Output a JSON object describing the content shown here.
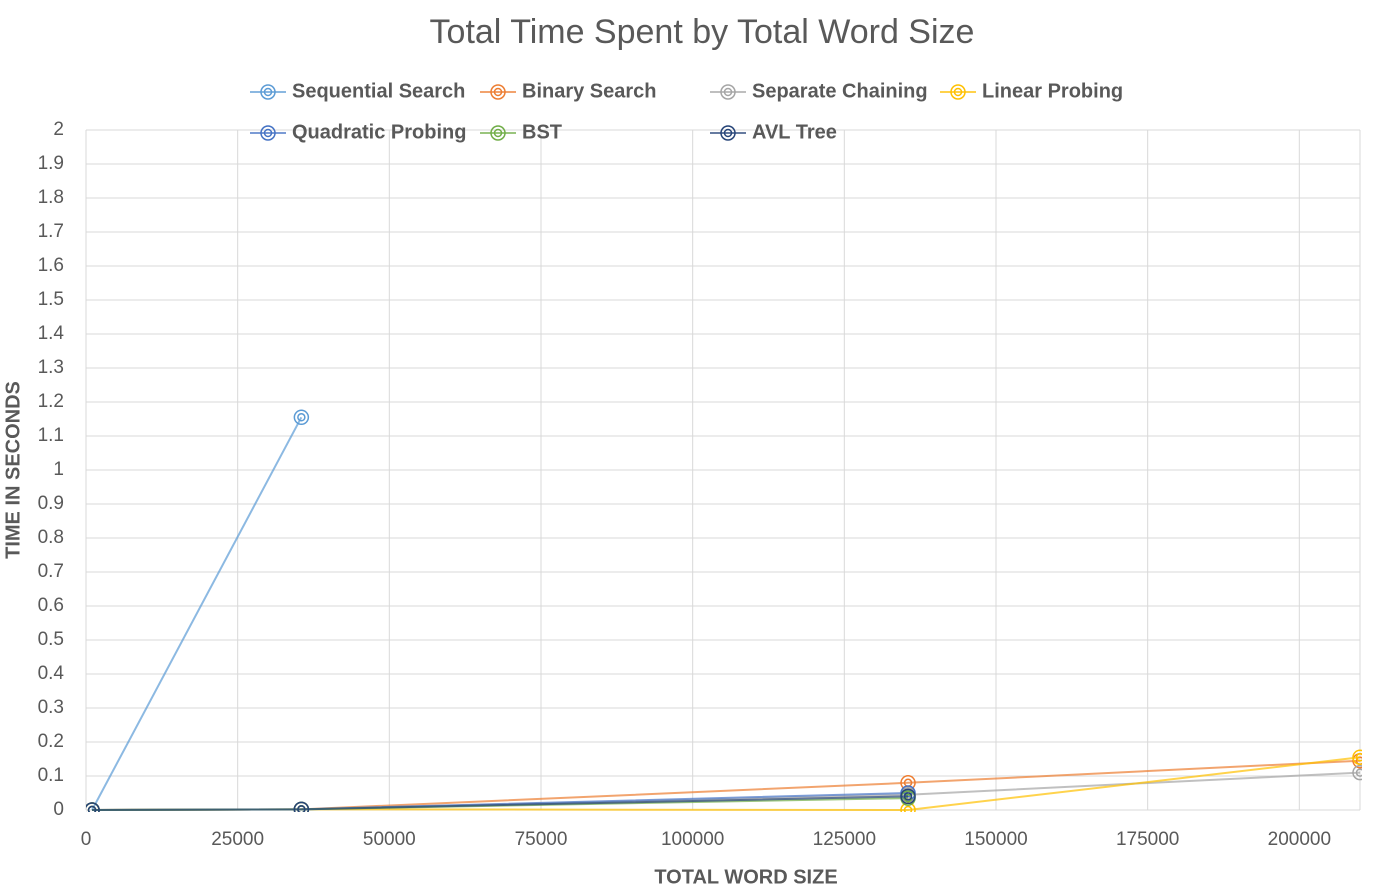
{
  "chart_data": {
    "type": "line",
    "title": "Total Time Spent by Total Word Size",
    "x_label": "TOTAL WORD SIZE",
    "y_label": "TIME IN SECONDS",
    "x": [
      1000,
      35500,
      135500,
      210000
    ],
    "series": [
      {
        "name": "Sequential Search",
        "color": "#5b9bd5",
        "values": [
          0,
          1.155,
          null,
          null
        ]
      },
      {
        "name": "Binary Search",
        "color": "#ed7d31",
        "values": [
          0,
          0.002,
          0.08,
          0.145
        ]
      },
      {
        "name": "Separate Chaining",
        "color": "#a5a5a5",
        "values": [
          0,
          0.002,
          0.045,
          0.11
        ]
      },
      {
        "name": "Linear Probing",
        "color": "#ffc000",
        "values": [
          0,
          0.002,
          0,
          0.155
        ]
      },
      {
        "name": "Quadratic Probing",
        "color": "#4472c4",
        "values": [
          0,
          0.002,
          0.05,
          null
        ]
      },
      {
        "name": "BST",
        "color": "#70ad47",
        "values": [
          0,
          0.002,
          0.035,
          null
        ]
      },
      {
        "name": "AVL Tree",
        "color": "#264478",
        "values": [
          0,
          0.002,
          0.04,
          null
        ]
      }
    ],
    "xlim": [
      0,
      210000
    ],
    "xticks": [
      0,
      25000,
      50000,
      75000,
      100000,
      125000,
      150000,
      175000,
      200000
    ],
    "ylim": [
      0,
      2
    ],
    "yticks": [
      0,
      0.1,
      0.2,
      0.3,
      0.4,
      0.5,
      0.6,
      0.7,
      0.8,
      0.9,
      1,
      1.1,
      1.2,
      1.3,
      1.4,
      1.5,
      1.6,
      1.7,
      1.8,
      1.9,
      2
    ],
    "grid": true
  }
}
